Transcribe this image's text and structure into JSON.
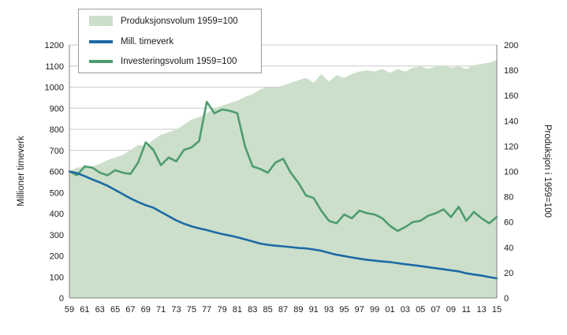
{
  "chart_data": {
    "type": "area",
    "x_years": [
      1959,
      1960,
      1961,
      1962,
      1963,
      1964,
      1965,
      1966,
      1967,
      1968,
      1969,
      1970,
      1971,
      1972,
      1973,
      1974,
      1975,
      1976,
      1977,
      1978,
      1979,
      1980,
      1981,
      1982,
      1983,
      1984,
      1985,
      1986,
      1987,
      1988,
      1989,
      1990,
      1991,
      1992,
      1993,
      1994,
      1995,
      1996,
      1997,
      1998,
      1999,
      2000,
      2001,
      2002,
      2003,
      2004,
      2005,
      2006,
      2007,
      2008,
      2009,
      2010,
      2011,
      2012,
      2013,
      2014,
      2015
    ],
    "x_tick_labels": [
      "59",
      "61",
      "63",
      "65",
      "67",
      "69",
      "71",
      "73",
      "75",
      "77",
      "79",
      "81",
      "83",
      "85",
      "87",
      "89",
      "91",
      "93",
      "95",
      "97",
      "99",
      "01",
      "03",
      "05",
      "07",
      "09",
      "11",
      "13",
      "15"
    ],
    "series": [
      {
        "name": "Produksjonsvolum 1959=100",
        "type": "area",
        "axis": "right",
        "color": "#ccdfca",
        "values": [
          100,
          103,
          104,
          104,
          106,
          109,
          111,
          113,
          117,
          121,
          120,
          125,
          129,
          131,
          133,
          137,
          141,
          143,
          146,
          150,
          152,
          154,
          156,
          159,
          161,
          165,
          167,
          166,
          168,
          170,
          172,
          174,
          170,
          177,
          171,
          176,
          174,
          177,
          179,
          180,
          179,
          181,
          178,
          181,
          179,
          182,
          183,
          181,
          183,
          184,
          182,
          183,
          181,
          184,
          185,
          186,
          188
        ]
      },
      {
        "name": "Mill. timeverk",
        "type": "line",
        "axis": "left",
        "color": "#1b6aa5",
        "values": [
          600,
          592,
          578,
          562,
          548,
          532,
          512,
          492,
          472,
          455,
          440,
          428,
          408,
          388,
          368,
          352,
          340,
          330,
          322,
          312,
          303,
          296,
          288,
          278,
          268,
          258,
          252,
          248,
          245,
          241,
          237,
          235,
          230,
          224,
          214,
          205,
          199,
          192,
          186,
          181,
          177,
          173,
          170,
          165,
          160,
          156,
          151,
          146,
          141,
          136,
          131,
          126,
          117,
          111,
          106,
          99,
          93
        ]
      },
      {
        "name": "Investeringsvolum 1959=100",
        "type": "line",
        "axis": "right",
        "color": "#4e9c6e",
        "values": [
          100,
          97,
          104,
          103,
          99,
          97,
          101,
          99,
          98,
          107,
          123,
          117,
          105,
          111,
          108,
          117,
          119,
          124,
          155,
          146,
          149,
          148,
          146,
          120,
          104,
          102,
          99,
          107,
          110,
          99,
          91,
          81,
          79,
          69,
          61,
          59,
          66,
          63,
          69,
          67,
          66,
          63,
          57,
          53,
          56,
          60,
          61,
          65,
          67,
          70,
          64,
          72,
          61,
          68,
          63,
          59,
          64
        ]
      }
    ],
    "left_axis": {
      "label": "Millioner timeverk",
      "min": 0,
      "max": 1200,
      "step": 100
    },
    "right_axis": {
      "label": "Produksjon i 1959=100",
      "min": 0,
      "max": 200,
      "step": 20
    },
    "grid": true,
    "legend_position": "top-left",
    "colors": {
      "gridline": "#c9c9c9",
      "axis_line": "#7f7f7f",
      "text": "#1a1a1a"
    }
  }
}
